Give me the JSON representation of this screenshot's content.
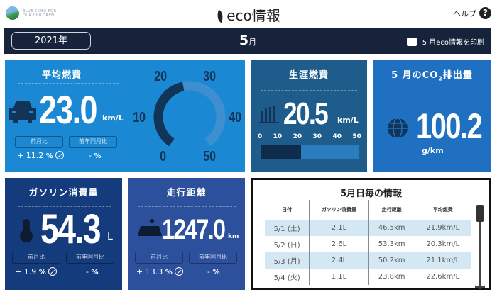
{
  "header": {
    "logo_text": [
      "BLUE SKIES FOR",
      "OUR CHILDREN"
    ],
    "title": "eco情報",
    "help_label": "ヘルプ",
    "help_icon": "?"
  },
  "bar": {
    "year": "2021年",
    "month_num": "5",
    "month_suffix": "月",
    "print_label": "5 月eco情報を印刷"
  },
  "avg": {
    "title": "平均燃費",
    "value": "23.0",
    "unit": "km/L",
    "mom_label": "前月比",
    "yoy_label": "前年同月比",
    "mom_value": "+ 11.2",
    "yoy_value": "-",
    "pct": "%",
    "gauge_ticks": [
      "0",
      "10",
      "20",
      "30",
      "40",
      "50"
    ],
    "gauge_value": 23.0,
    "gauge_max": 50
  },
  "lifetime": {
    "title": "生涯燃費",
    "value": "20.5",
    "unit": "km/L",
    "ticks": [
      "0",
      "10",
      "20",
      "30",
      "40",
      "50"
    ],
    "bar_value": 20.5,
    "bar_max": 50
  },
  "co2": {
    "title_pre": "5 月のCO",
    "title_sub": "2",
    "title_post": "排出量",
    "value": "100.2",
    "unit": "g/km"
  },
  "gas": {
    "title": "ガソリン消費量",
    "value": "54.3",
    "unit": "L",
    "mom_label": "前月比",
    "yoy_label": "前年同月比",
    "mom_value": "+ 1.9",
    "yoy_value": "-",
    "pct": "%"
  },
  "dist": {
    "title": "走行距離",
    "value": "1247.0",
    "unit": "km",
    "mom_label": "前月比",
    "yoy_label": "前年同月比",
    "mom_value": "+ 13.3",
    "yoy_value": "-",
    "pct": "%"
  },
  "daily": {
    "title": "5月日毎の情報",
    "headers": [
      "日付",
      "ガソリン消費量",
      "走行距離",
      "平均燃費"
    ],
    "rows": [
      [
        "5/1 (土)",
        "2.1L",
        "46.5km",
        "21.9km/L"
      ],
      [
        "5/2 (日)",
        "2.6L",
        "53.3km",
        "20.3km/L"
      ],
      [
        "5/3 (月)",
        "2.4L",
        "50.2km",
        "21.1km/L"
      ],
      [
        "5/4 (火)",
        "1.1L",
        "23.8km",
        "22.6km/L"
      ]
    ]
  },
  "colors": {
    "avg": "#1b88d3",
    "lifetime": "#1e5c8c",
    "co2": "#1f70c1",
    "gas": "#143b7c",
    "dist": "#2d509d",
    "bar": "#16233a"
  }
}
